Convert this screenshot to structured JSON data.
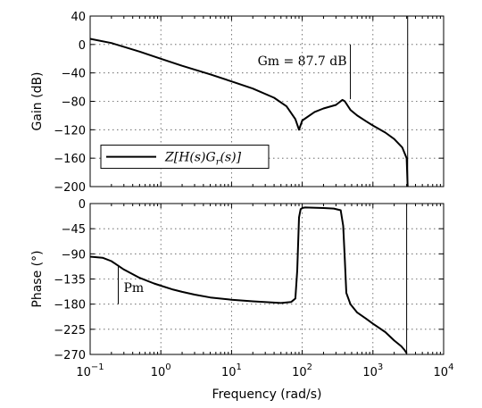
{
  "chart_data": [
    {
      "type": "line",
      "ylabel": "Gain (dB)",
      "xscale": "log",
      "xlim": [
        0.1,
        10000
      ],
      "ylim": [
        -200,
        40
      ],
      "yticks": [
        40,
        0,
        -40,
        -80,
        -120,
        -160,
        -200
      ],
      "grid": true,
      "legend": {
        "placement": "bottom-left",
        "entries": [
          "Z[H(s)Gr(s)]"
        ]
      },
      "annotations": [
        {
          "text": "Gm = 87.7 dB",
          "x": 480,
          "y_from": -77,
          "y_to": 0
        }
      ],
      "series": [
        {
          "x": [
            0.1,
            0.2,
            0.5,
            1,
            2,
            5,
            10,
            20,
            40,
            60,
            80,
            90,
            100,
            150,
            200,
            300,
            370,
            400,
            480,
            600,
            800,
            1000,
            1500,
            2000,
            2600,
            3000,
            3100
          ],
          "y": [
            8,
            2,
            -10,
            -20,
            -30,
            -42,
            -52,
            -62,
            -75,
            -87,
            -105,
            -120,
            -107,
            -95,
            -90,
            -85,
            -78,
            -80,
            -92,
            -100,
            -108,
            -114,
            -124,
            -133,
            -145,
            -160,
            -200
          ]
        }
      ]
    },
    {
      "type": "line",
      "xlabel": "Frequency  (rad/s)",
      "ylabel": "Phase (°)",
      "xscale": "log",
      "xlim": [
        0.1,
        10000
      ],
      "ylim": [
        -270,
        0
      ],
      "yticks": [
        0,
        -45,
        -90,
        -135,
        -180,
        -225,
        -270
      ],
      "xticks": [
        0.1,
        1,
        10,
        100,
        1000,
        10000
      ],
      "grid": true,
      "annotations": [
        {
          "text": "Pm",
          "x": 0.25,
          "y_from": -180,
          "y_to": -113
        }
      ],
      "series": [
        {
          "x": [
            0.1,
            0.15,
            0.2,
            0.3,
            0.5,
            0.8,
            1,
            1.5,
            2,
            3,
            5,
            10,
            20,
            50,
            70,
            80,
            85,
            90,
            95,
            100,
            110,
            200,
            280,
            350,
            380,
            400,
            420,
            480,
            600,
            800,
            1000,
            1500,
            2000,
            2500,
            2800,
            3000
          ],
          "y": [
            -95,
            -97,
            -103,
            -118,
            -133,
            -143,
            -147,
            -154,
            -158,
            -163,
            -168,
            -172,
            -175,
            -178,
            -176,
            -170,
            -120,
            -25,
            -10,
            -8,
            -7,
            -8,
            -9,
            -12,
            -40,
            -100,
            -160,
            -180,
            -195,
            -206,
            -215,
            -230,
            -245,
            -255,
            -262,
            -268
          ]
        }
      ]
    }
  ]
}
